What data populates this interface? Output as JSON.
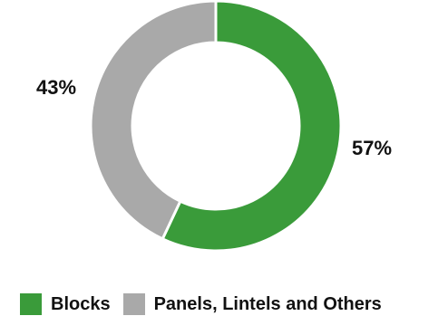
{
  "chart_data": {
    "type": "pie",
    "donut": true,
    "categories": [
      "Blocks",
      "Panels, Lintels and Others"
    ],
    "values": [
      57,
      43
    ],
    "labels": [
      "57%",
      "43%"
    ],
    "colors": [
      "#3a9b3a",
      "#a9a9a9"
    ],
    "legend_placement": "bottom"
  },
  "legend": {
    "items": [
      {
        "label": "Blocks",
        "color": "#3a9b3a"
      },
      {
        "label": "Panels, Lintels and Others",
        "color": "#a9a9a9"
      }
    ]
  }
}
